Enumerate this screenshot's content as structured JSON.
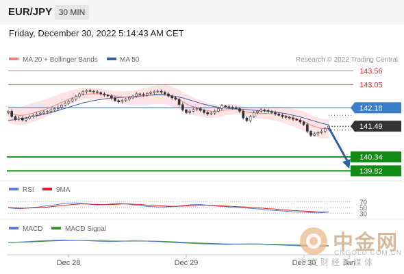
{
  "header": {
    "pair": "EUR/JPY",
    "timeframe": "30 MIN"
  },
  "timestamp": "Friday, December 30, 2022 5:14:43 AM CET",
  "watermark": {
    "chinese": "中金网",
    "url": "CNGOLD.COM.CN",
    "subtitle": "中文财经新媒体"
  },
  "colors": {
    "ma20": "#f08080",
    "bollinger_fill": "#fde0e0",
    "ma50": "#3a5fa0",
    "support": "#138a13",
    "price_label": "#333333",
    "pivot_label": "#3b7ec8",
    "rsi": "#5b7fd6",
    "rsi_ma": "#d82020",
    "macd": "#5b7fd6",
    "macd_signal": "#3a9a28",
    "arrow": "#2f5d9e",
    "resistance": "#ee6a6a"
  },
  "chart_data": [
    {
      "type": "line",
      "panel": "price",
      "legend": [
        "MA 20 + Bollinger Bands",
        "MA 50"
      ],
      "legend_placement": "top-left",
      "credit": "Research © 2022 Trading Central",
      "x_ticks": [
        "Dec 28",
        "Dec 29",
        "Dec 30",
        "Jan"
      ],
      "ylim": [
        139.6,
        143.7
      ],
      "levels": [
        {
          "value": 143.56,
          "label": "143.56",
          "kind": "resistance"
        },
        {
          "value": 143.05,
          "label": "143.05",
          "kind": "resistance"
        },
        {
          "value": 142.18,
          "label": "142.18",
          "kind": "pivot"
        },
        {
          "value": 141.49,
          "label": "141.49",
          "kind": "last"
        },
        {
          "value": 140.34,
          "label": "140.34",
          "kind": "support"
        },
        {
          "value": 139.82,
          "label": "139.82",
          "kind": "support"
        }
      ],
      "close": [
        142.05,
        141.85,
        141.75,
        141.8,
        141.72,
        141.78,
        141.85,
        141.9,
        141.95,
        141.98,
        142.02,
        142.05,
        142.1,
        142.15,
        142.2,
        142.28,
        142.35,
        142.42,
        142.5,
        142.6,
        142.7,
        142.78,
        142.82,
        142.8,
        142.78,
        142.75,
        142.7,
        142.65,
        142.62,
        142.55,
        142.45,
        142.4,
        142.45,
        142.5,
        142.55,
        142.62,
        142.7,
        142.68,
        142.65,
        142.72,
        142.75,
        142.78,
        142.8,
        142.76,
        142.7,
        142.62,
        142.55,
        142.5,
        142.3,
        142.1,
        142.0,
        142.05,
        142.12,
        142.15,
        142.08,
        142.0,
        141.95,
        141.98,
        142.05,
        142.15,
        142.25,
        142.22,
        142.2,
        142.18,
        142.15,
        142.05,
        141.8,
        141.7,
        141.85,
        142.0,
        142.05,
        142.1,
        142.08,
        142.05,
        142.0,
        141.95,
        141.9,
        141.85,
        141.82,
        141.8,
        141.75,
        141.72,
        141.65,
        141.55,
        141.3,
        141.15,
        141.2,
        141.25,
        141.3,
        141.4,
        141.49
      ],
      "ma20": [
        142.0,
        141.95,
        141.92,
        141.9,
        141.9,
        141.92,
        141.95,
        141.98,
        142.02,
        142.06,
        142.1,
        142.15,
        142.2,
        142.26,
        142.32,
        142.38,
        142.44,
        142.5,
        142.55,
        142.6,
        142.64,
        142.67,
        142.69,
        142.7,
        142.7,
        142.7,
        142.69,
        142.68,
        142.66,
        142.64,
        142.62,
        142.6,
        142.59,
        142.58,
        142.58,
        142.58,
        142.59,
        142.6,
        142.62,
        142.64,
        142.66,
        142.68,
        142.69,
        142.69,
        142.68,
        142.65,
        142.6,
        142.55,
        142.48,
        142.4,
        142.33,
        142.27,
        142.22,
        142.18,
        142.14,
        142.1,
        142.07,
        142.05,
        142.05,
        142.06,
        142.08,
        142.1,
        142.11,
        142.12,
        142.12,
        142.1,
        142.06,
        142.02,
        142.0,
        141.98,
        141.97,
        141.97,
        141.97,
        141.97,
        141.96,
        141.95,
        141.93,
        141.9,
        141.87,
        141.84,
        141.8,
        141.76,
        141.72,
        141.67,
        141.6,
        141.53,
        141.48,
        141.44,
        141.41,
        141.4,
        141.4
      ],
      "ma50": [
        141.7,
        141.72,
        141.74,
        141.76,
        141.78,
        141.8,
        141.82,
        141.85,
        141.88,
        141.91,
        141.94,
        141.97,
        142.0,
        142.04,
        142.08,
        142.12,
        142.16,
        142.2,
        142.24,
        142.28,
        142.32,
        142.36,
        142.39,
        142.42,
        142.45,
        142.47,
        142.49,
        142.51,
        142.53,
        142.54,
        142.55,
        142.56,
        142.57,
        142.58,
        142.59,
        142.6,
        142.61,
        142.62,
        142.63,
        142.64,
        142.65,
        142.66,
        142.66,
        142.66,
        142.66,
        142.65,
        142.63,
        142.61,
        142.58,
        142.55,
        142.51,
        142.47,
        142.43,
        142.39,
        142.35,
        142.31,
        142.28,
        142.25,
        142.22,
        142.2,
        142.18,
        142.17,
        142.16,
        142.15,
        142.14,
        142.13,
        142.12,
        142.11,
        142.1,
        142.09,
        142.08,
        142.07,
        142.06,
        142.05,
        142.04,
        142.02,
        142.0,
        141.98,
        141.96,
        141.93,
        141.9,
        141.87,
        141.84,
        141.8,
        141.76,
        141.72,
        141.68,
        141.64,
        141.6,
        141.57,
        141.54
      ],
      "bollinger_width": 0.28
    },
    {
      "type": "line",
      "panel": "rsi",
      "legend": [
        "RSI",
        "9MA"
      ],
      "legend_placement": "top-left",
      "ylim": [
        20,
        80
      ],
      "y_ticks": [
        70,
        50,
        30
      ],
      "series": [
        {
          "name": "RSI",
          "values": [
            49,
            47,
            46,
            48,
            50,
            52,
            55,
            57,
            60,
            63,
            65,
            66,
            64,
            62,
            60,
            59,
            60,
            62,
            64,
            63,
            61,
            58,
            56,
            54,
            53,
            52,
            52,
            53,
            55,
            57,
            59,
            61,
            60,
            58,
            56,
            54,
            53,
            51,
            50,
            49,
            47,
            46,
            44,
            42,
            40,
            39,
            38,
            36,
            35,
            34,
            33,
            32,
            33,
            35
          ]
        },
        {
          "name": "9MA",
          "values": [
            50,
            49,
            48,
            48,
            49,
            50,
            51,
            53,
            55,
            57,
            59,
            61,
            62,
            62,
            61,
            60,
            60,
            60,
            61,
            62,
            62,
            61,
            60,
            58,
            57,
            56,
            55,
            54,
            54,
            55,
            56,
            57,
            58,
            58,
            57,
            56,
            55,
            54,
            53,
            52,
            51,
            49,
            48,
            46,
            45,
            43,
            42,
            40,
            39,
            38,
            37,
            36,
            35,
            35
          ]
        }
      ]
    },
    {
      "type": "line",
      "panel": "macd",
      "legend": [
        "MACD",
        "MACD Signal"
      ],
      "legend_placement": "top-left",
      "ylim": [
        -1,
        1
      ],
      "series": [
        {
          "name": "MACD",
          "values": [
            0.1,
            0.12,
            0.15,
            0.2,
            0.26,
            0.3,
            0.34,
            0.36,
            0.35,
            0.32,
            0.28,
            0.24,
            0.2,
            0.18,
            0.2,
            0.24,
            0.26,
            0.25,
            0.22,
            0.18,
            0.13,
            0.08,
            0.04,
            0.0,
            -0.05,
            -0.08,
            -0.1,
            -0.12,
            -0.14,
            -0.12,
            -0.1,
            -0.08,
            -0.1,
            -0.14,
            -0.18,
            -0.22,
            -0.26,
            -0.3,
            -0.34,
            -0.36,
            -0.35,
            -0.32
          ]
        },
        {
          "name": "MACD Signal",
          "values": [
            0.08,
            0.1,
            0.12,
            0.15,
            0.19,
            0.23,
            0.27,
            0.3,
            0.32,
            0.32,
            0.31,
            0.29,
            0.26,
            0.24,
            0.23,
            0.23,
            0.24,
            0.24,
            0.23,
            0.21,
            0.18,
            0.15,
            0.11,
            0.07,
            0.03,
            -0.01,
            -0.04,
            -0.07,
            -0.09,
            -0.1,
            -0.1,
            -0.1,
            -0.1,
            -0.11,
            -0.13,
            -0.15,
            -0.18,
            -0.21,
            -0.24,
            -0.27,
            -0.29,
            -0.3
          ]
        }
      ]
    }
  ]
}
